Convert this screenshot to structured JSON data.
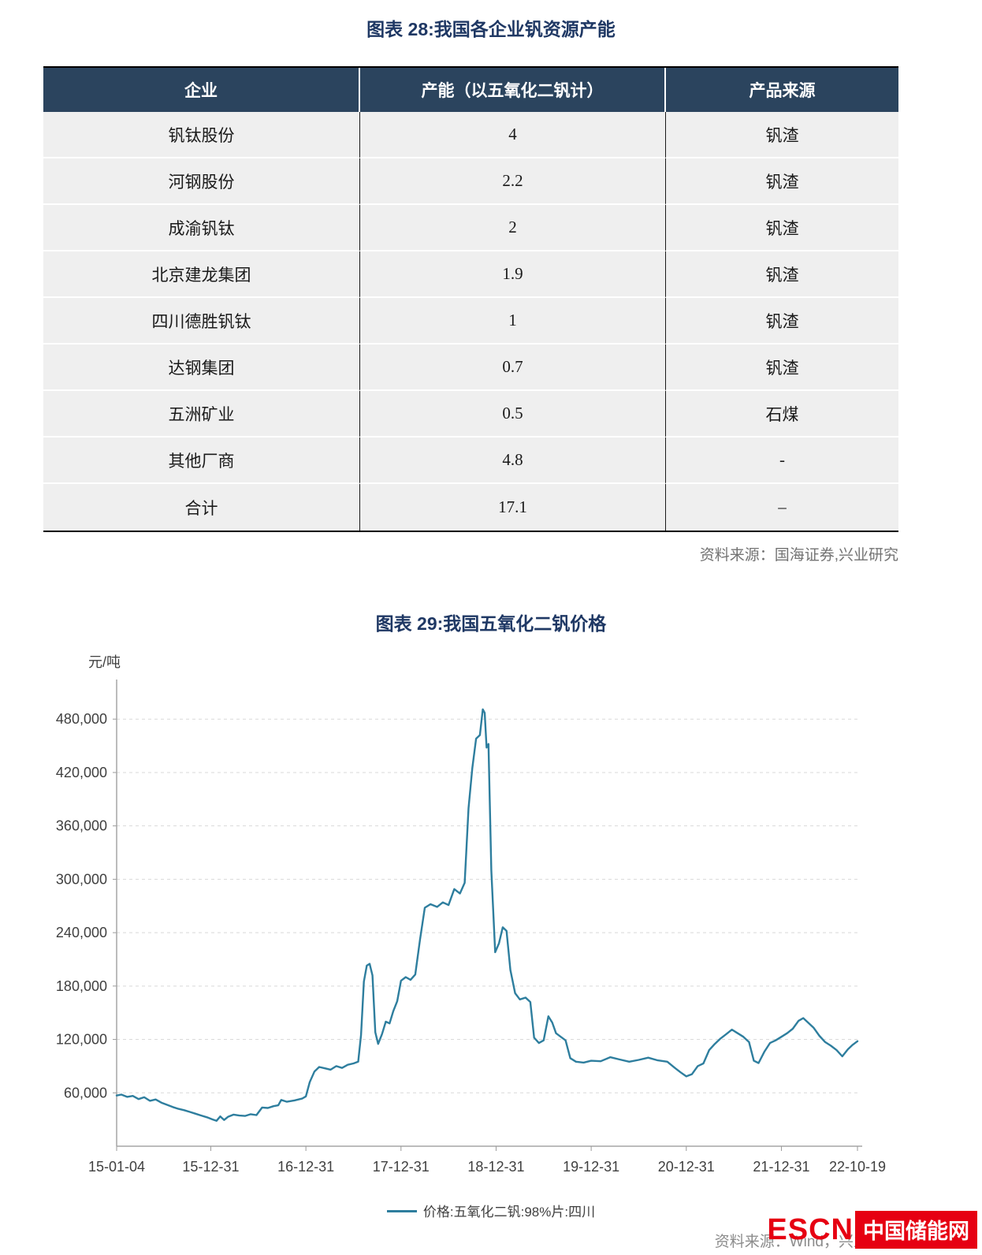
{
  "figure28": {
    "title": "图表 28:我国各企业钒资源产能",
    "table": {
      "headers": [
        "企业",
        "产能（以五氧化二钒计）",
        "产品来源"
      ],
      "rows": [
        [
          "钒钛股份",
          "4",
          "钒渣"
        ],
        [
          "河钢股份",
          "2.2",
          "钒渣"
        ],
        [
          "成渝钒钛",
          "2",
          "钒渣"
        ],
        [
          "北京建龙集团",
          "1.9",
          "钒渣"
        ],
        [
          "四川德胜钒钛",
          "1",
          "钒渣"
        ],
        [
          "达钢集团",
          "0.7",
          "钒渣"
        ],
        [
          "五洲矿业",
          "0.5",
          "石煤"
        ],
        [
          "其他厂商",
          "4.8",
          "-"
        ],
        [
          "合计",
          "17.1",
          "–"
        ]
      ]
    },
    "source": "资料来源：国海证券,兴业研究"
  },
  "figure29": {
    "title": "图表 29:我国五氧化二钒价格",
    "source": "资料来源：Wind，兴业研究",
    "logo": {
      "escn": "ESCN",
      "cn": "中国储能网",
      "color": "#e60012"
    }
  },
  "chart_data": {
    "type": "line",
    "title": "图表 29:我国五氧化二钒价格",
    "ylabel": "元/吨",
    "xlabel": "",
    "ylim": [
      0,
      505000
    ],
    "xlim": [
      2015.01,
      2022.8
    ],
    "y_ticks": [
      60000,
      120000,
      180000,
      240000,
      300000,
      360000,
      420000,
      480000
    ],
    "x_tick_labels": [
      "15-01-04",
      "15-12-31",
      "16-12-31",
      "17-12-31",
      "18-12-31",
      "19-12-31",
      "20-12-31",
      "21-12-31",
      "22-10-19"
    ],
    "x_tick_positions": [
      2015.01,
      2016.0,
      2017.0,
      2018.0,
      2019.0,
      2020.0,
      2021.0,
      2022.0,
      2022.8
    ],
    "grid": "dashed-horizontal",
    "legend": "价格:五氧化二钒:98%片:四川",
    "legend_position": "bottom-center",
    "line_color": "#2e7e9e",
    "series": [
      {
        "name": "价格:五氧化二钒:98%片:四川",
        "points": [
          [
            2015.01,
            57000
          ],
          [
            2015.06,
            58000
          ],
          [
            2015.12,
            55500
          ],
          [
            2015.18,
            56500
          ],
          [
            2015.24,
            53000
          ],
          [
            2015.3,
            55000
          ],
          [
            2015.36,
            51000
          ],
          [
            2015.42,
            52500
          ],
          [
            2015.48,
            49000
          ],
          [
            2015.54,
            46500
          ],
          [
            2015.6,
            44000
          ],
          [
            2015.66,
            42000
          ],
          [
            2015.72,
            40500
          ],
          [
            2015.78,
            38500
          ],
          [
            2015.84,
            36500
          ],
          [
            2015.9,
            34500
          ],
          [
            2015.96,
            32500
          ],
          [
            2016.02,
            30000
          ],
          [
            2016.06,
            28500
          ],
          [
            2016.1,
            33500
          ],
          [
            2016.14,
            29500
          ],
          [
            2016.18,
            33000
          ],
          [
            2016.24,
            35500
          ],
          [
            2016.3,
            34500
          ],
          [
            2016.36,
            34000
          ],
          [
            2016.42,
            36000
          ],
          [
            2016.48,
            35000
          ],
          [
            2016.54,
            43500
          ],
          [
            2016.6,
            43000
          ],
          [
            2016.66,
            45000
          ],
          [
            2016.71,
            46000
          ],
          [
            2016.74,
            52000
          ],
          [
            2016.8,
            50000
          ],
          [
            2016.88,
            51500
          ],
          [
            2016.96,
            53500
          ],
          [
            2017.0,
            56000
          ],
          [
            2017.04,
            72000
          ],
          [
            2017.09,
            84000
          ],
          [
            2017.14,
            89000
          ],
          [
            2017.2,
            87500
          ],
          [
            2017.26,
            86000
          ],
          [
            2017.32,
            90000
          ],
          [
            2017.38,
            88000
          ],
          [
            2017.44,
            91500
          ],
          [
            2017.5,
            93000
          ],
          [
            2017.55,
            95000
          ],
          [
            2017.58,
            125000
          ],
          [
            2017.61,
            185000
          ],
          [
            2017.64,
            203000
          ],
          [
            2017.67,
            205000
          ],
          [
            2017.7,
            192000
          ],
          [
            2017.73,
            128000
          ],
          [
            2017.76,
            115000
          ],
          [
            2017.8,
            126000
          ],
          [
            2017.84,
            140000
          ],
          [
            2017.88,
            138000
          ],
          [
            2017.92,
            152000
          ],
          [
            2017.96,
            163000
          ],
          [
            2018.0,
            186000
          ],
          [
            2018.05,
            190000
          ],
          [
            2018.1,
            187000
          ],
          [
            2018.15,
            193000
          ],
          [
            2018.2,
            232000
          ],
          [
            2018.25,
            268000
          ],
          [
            2018.31,
            272000
          ],
          [
            2018.38,
            269000
          ],
          [
            2018.44,
            274000
          ],
          [
            2018.5,
            271000
          ],
          [
            2018.56,
            289000
          ],
          [
            2018.62,
            284000
          ],
          [
            2018.67,
            296000
          ],
          [
            2018.71,
            380000
          ],
          [
            2018.75,
            425000
          ],
          [
            2018.79,
            458000
          ],
          [
            2018.83,
            462000
          ],
          [
            2018.86,
            491000
          ],
          [
            2018.88,
            487000
          ],
          [
            2018.9,
            448000
          ],
          [
            2018.92,
            452000
          ],
          [
            2018.95,
            310000
          ],
          [
            2018.99,
            218000
          ],
          [
            2019.03,
            228000
          ],
          [
            2019.07,
            246000
          ],
          [
            2019.11,
            242000
          ],
          [
            2019.15,
            198000
          ],
          [
            2019.2,
            172000
          ],
          [
            2019.25,
            165000
          ],
          [
            2019.31,
            167000
          ],
          [
            2019.36,
            162000
          ],
          [
            2019.4,
            122000
          ],
          [
            2019.45,
            116000
          ],
          [
            2019.5,
            119000
          ],
          [
            2019.55,
            146000
          ],
          [
            2019.59,
            139000
          ],
          [
            2019.63,
            127000
          ],
          [
            2019.68,
            123000
          ],
          [
            2019.73,
            119000
          ],
          [
            2019.78,
            99000
          ],
          [
            2019.84,
            95000
          ],
          [
            2019.92,
            94000
          ],
          [
            2020.0,
            96000
          ],
          [
            2020.1,
            95500
          ],
          [
            2020.2,
            100000
          ],
          [
            2020.3,
            97500
          ],
          [
            2020.4,
            95000
          ],
          [
            2020.5,
            97000
          ],
          [
            2020.6,
            99500
          ],
          [
            2020.7,
            96500
          ],
          [
            2020.8,
            95000
          ],
          [
            2020.88,
            88000
          ],
          [
            2020.94,
            83000
          ],
          [
            2021.0,
            78500
          ],
          [
            2021.06,
            81000
          ],
          [
            2021.12,
            90000
          ],
          [
            2021.18,
            93000
          ],
          [
            2021.24,
            108000
          ],
          [
            2021.3,
            115000
          ],
          [
            2021.36,
            121000
          ],
          [
            2021.42,
            126000
          ],
          [
            2021.48,
            131000
          ],
          [
            2021.54,
            127000
          ],
          [
            2021.6,
            123000
          ],
          [
            2021.66,
            117000
          ],
          [
            2021.71,
            96000
          ],
          [
            2021.76,
            93500
          ],
          [
            2021.82,
            106000
          ],
          [
            2021.88,
            116000
          ],
          [
            2021.94,
            119000
          ],
          [
            2022.0,
            123000
          ],
          [
            2022.06,
            127000
          ],
          [
            2022.12,
            132000
          ],
          [
            2022.18,
            141000
          ],
          [
            2022.23,
            144000
          ],
          [
            2022.28,
            139000
          ],
          [
            2022.34,
            133000
          ],
          [
            2022.4,
            124000
          ],
          [
            2022.46,
            117000
          ],
          [
            2022.52,
            113000
          ],
          [
            2022.58,
            108000
          ],
          [
            2022.64,
            101000
          ],
          [
            2022.7,
            109000
          ],
          [
            2022.75,
            114000
          ],
          [
            2022.8,
            118000
          ]
        ]
      }
    ]
  }
}
